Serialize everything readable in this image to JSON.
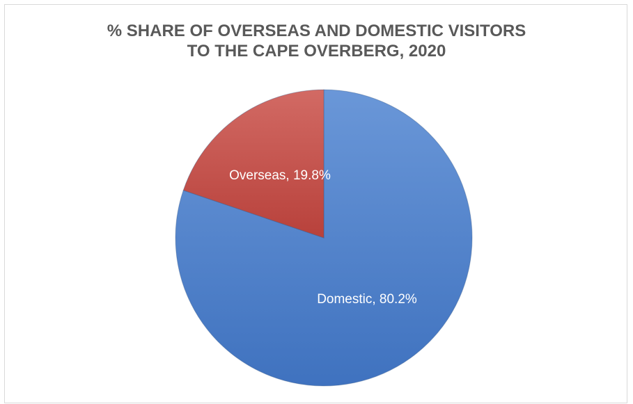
{
  "chart_data": {
    "type": "pie",
    "title_lines": [
      "% SHARE OF OVERSEAS AND DOMESTIC VISITORS",
      "TO THE CAPE OVERBERG, 2020"
    ],
    "categories": [
      "Domestic",
      "Overseas"
    ],
    "values": [
      80.2,
      19.8
    ],
    "labels": [
      "Domestic, 80.2%",
      "Overseas, 19.8%"
    ],
    "colors": [
      "#4f81bd",
      "#c0504d"
    ],
    "start_angle": "12 o'clock",
    "direction": "clockwise",
    "legend": "none"
  }
}
